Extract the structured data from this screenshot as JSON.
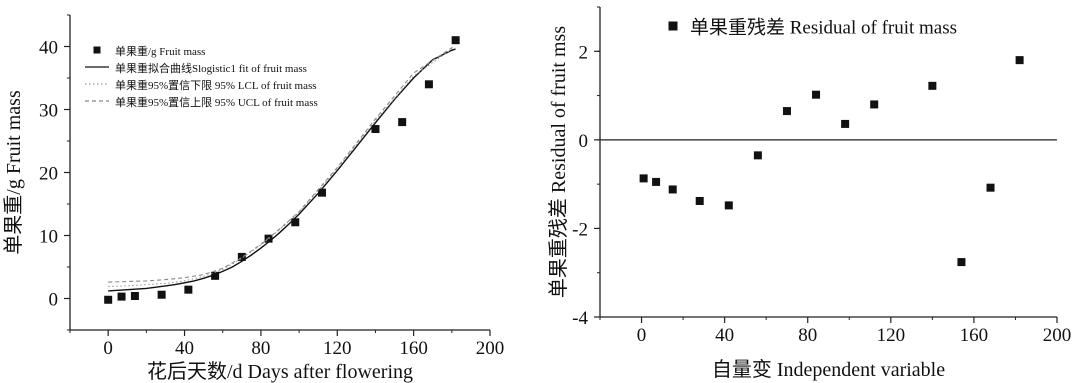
{
  "chart_data": [
    {
      "type": "scatter",
      "xlabel": "花后天数/d Days after flowering",
      "ylabel": "单果重/g Fruit mass",
      "xlim": [
        -20,
        200
      ],
      "ylim": [
        -5,
        45
      ],
      "xticks": [
        0,
        40,
        80,
        120,
        160,
        200
      ],
      "yticks": [
        0,
        10,
        20,
        30,
        40
      ],
      "legend_position": "top-left",
      "series": [
        {
          "name": "单果重/g Fruit mass",
          "kind": "markers",
          "x": [
            0,
            7,
            14,
            28,
            42,
            56,
            70,
            84,
            98,
            112,
            140,
            154,
            168,
            182
          ],
          "y": [
            -0.2,
            0.3,
            0.4,
            0.6,
            1.4,
            3.6,
            6.6,
            9.5,
            12.1,
            16.8,
            26.9,
            28.0,
            34.0,
            41.0
          ]
        },
        {
          "name": "单果重拟合曲线Slogistic1 fit of  fruit mass",
          "kind": "solid-line",
          "x": [
            0,
            5,
            10,
            15,
            20,
            25,
            30,
            35,
            40,
            45,
            50,
            55,
            60,
            65,
            70,
            75,
            80,
            85,
            90,
            95,
            100,
            110,
            120,
            130,
            140,
            150,
            160,
            170,
            180,
            182
          ],
          "y": [
            1.2,
            1.3,
            1.4,
            1.5,
            1.6,
            1.8,
            2.0,
            2.2,
            2.5,
            2.8,
            3.2,
            3.7,
            4.3,
            5.0,
            5.9,
            6.9,
            8.0,
            9.2,
            10.5,
            11.9,
            13.4,
            16.7,
            20.3,
            24.1,
            27.9,
            31.6,
            35.0,
            37.9,
            39.4,
            39.6
          ]
        },
        {
          "name": "单果重95%置信下限  95% LCL of fruit mass",
          "kind": "dotted-line",
          "x": [
            0,
            10,
            20,
            30,
            40,
            50,
            60,
            70,
            80,
            90,
            100,
            120,
            140,
            160,
            180,
            182
          ],
          "y": [
            1.9,
            2.0,
            2.2,
            2.4,
            2.8,
            3.5,
            4.6,
            6.4,
            8.5,
            11.0,
            13.7,
            20.6,
            28.2,
            35.3,
            39.6,
            39.7
          ]
        },
        {
          "name": "单果重95%置信上限  95% UCL of fruit mass",
          "kind": "dashed-line",
          "x": [
            0,
            10,
            20,
            30,
            40,
            50,
            60,
            70,
            80,
            90,
            100,
            120,
            140,
            160,
            180,
            182
          ],
          "y": [
            2.6,
            2.7,
            2.8,
            3.0,
            3.3,
            3.8,
            4.8,
            6.5,
            8.6,
            11.1,
            13.8,
            20.8,
            28.5,
            35.8,
            39.8,
            39.9
          ]
        }
      ]
    },
    {
      "type": "scatter",
      "xlabel": "自量变  Independent variable",
      "ylabel": "单果重残差 Residual of fruit mss",
      "xlim": [
        -20,
        200
      ],
      "ylim": [
        -4,
        3
      ],
      "xticks": [
        0,
        40,
        80,
        120,
        160,
        200
      ],
      "yticks": [
        -4,
        -2,
        0,
        2
      ],
      "zero_line": true,
      "legend_position": "top-center",
      "series": [
        {
          "name": "单果重残差  Residual of fruit mass",
          "kind": "markers",
          "x": [
            1,
            7,
            15,
            28,
            42,
            56,
            70,
            84,
            98,
            112,
            140,
            154,
            168,
            182
          ],
          "y": [
            -0.87,
            -0.95,
            -1.12,
            -1.38,
            -1.48,
            -0.35,
            0.65,
            1.02,
            0.36,
            0.8,
            1.22,
            -2.76,
            -1.08,
            1.8
          ]
        }
      ]
    }
  ]
}
